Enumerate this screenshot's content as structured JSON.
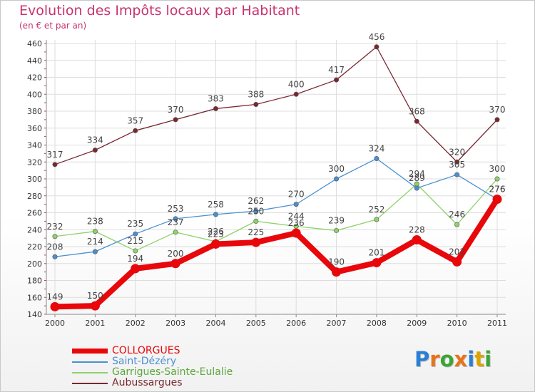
{
  "title": "Evolution des Impôts locaux par Habitant",
  "subtitle": "(en € et par an)",
  "logo": "Proxiti",
  "logo_colors": [
    "#2a7fd4",
    "#e8731a",
    "#3aa535",
    "#e8731a",
    "#2a7fd4",
    "#d9a400",
    "#3aa535"
  ],
  "colors": {
    "title": "#c8326e",
    "axis_text": "#333333",
    "grid": "#dddddd",
    "axis": "#888888"
  },
  "chart_data": {
    "type": "line",
    "x": [
      "2000",
      "2001",
      "2002",
      "2003",
      "2004",
      "2005",
      "2006",
      "2007",
      "2008",
      "2009",
      "2010",
      "2011"
    ],
    "ylim": [
      140,
      460
    ],
    "yticks": [
      140,
      160,
      180,
      200,
      220,
      240,
      260,
      280,
      300,
      320,
      340,
      360,
      380,
      400,
      420,
      440,
      460
    ],
    "grid": true,
    "legend_position": "bottom-left",
    "series": [
      {
        "name": "COLLORGUES",
        "color": "#e8070a",
        "values": [
          149,
          150,
          194,
          200,
          223,
          225,
          236,
          190,
          201,
          228,
          202,
          276
        ]
      },
      {
        "name": "Saint-Dézéry",
        "color": "#4a90d0",
        "values": [
          208,
          214,
          235,
          253,
          258,
          262,
          270,
          300,
          324,
          289,
          305,
          276
        ]
      },
      {
        "name": "Garrigues-Sainte-Eulalie",
        "color": "#8ed26a",
        "values": [
          232,
          238,
          215,
          237,
          226,
          250,
          244,
          239,
          252,
          294,
          246,
          300
        ]
      },
      {
        "name": "Aubussargues",
        "color": "#7a2830",
        "values": [
          317,
          334,
          357,
          370,
          383,
          388,
          400,
          417,
          456,
          368,
          320,
          370
        ]
      }
    ],
    "point_labels": [
      [
        149,
        150,
        194,
        200,
        223,
        225,
        236,
        190,
        201,
        228,
        202,
        276
      ],
      [
        208,
        214,
        235,
        253,
        258,
        262,
        270,
        300,
        324,
        289,
        305,
        276
      ],
      [
        232,
        238,
        215,
        237,
        226,
        250,
        244,
        239,
        252,
        294,
        246,
        300
      ],
      [
        317,
        334,
        357,
        370,
        383,
        388,
        400,
        417,
        456,
        368,
        320,
        370
      ]
    ]
  }
}
